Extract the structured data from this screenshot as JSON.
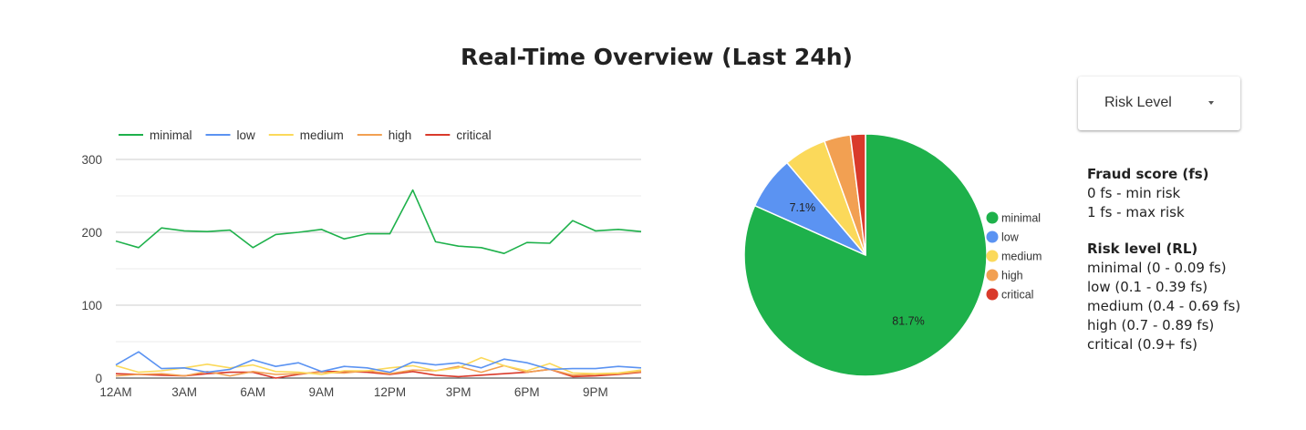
{
  "page": {
    "title": "Real-Time Overview (Last 24h)"
  },
  "dropdown": {
    "label": "Risk Level",
    "icon": "caret-down-icon"
  },
  "info": {
    "fraud_score_title": "Fraud score (fs)",
    "fraud_score_lines": [
      "0 fs - min risk",
      "1 fs - max risk"
    ],
    "risk_level_title": "Risk level (RL)",
    "risk_level_lines": [
      "minimal (0 - 0.09 fs)",
      "low (0.1 - 0.39 fs)",
      "medium (0.4 - 0.69 fs)",
      "high (0.7 - 0.89 fs)",
      "critical (0.9+ fs)"
    ]
  },
  "colors": {
    "minimal": "#1eb14b",
    "low": "#5b93f2",
    "medium": "#fbd95a",
    "high": "#f2a052",
    "critical": "#d93a2b"
  },
  "chart_data": [
    {
      "type": "line",
      "x": [
        "12AM",
        "1AM",
        "2AM",
        "3AM",
        "4AM",
        "5AM",
        "6AM",
        "7AM",
        "8AM",
        "9AM",
        "10AM",
        "11AM",
        "12PM",
        "1PM",
        "2PM",
        "3PM",
        "4PM",
        "5PM",
        "6PM",
        "7PM",
        "8PM",
        "9PM",
        "10PM",
        "11PM"
      ],
      "xtick_labels": [
        "12AM",
        "3AM",
        "6AM",
        "9AM",
        "12PM",
        "3PM",
        "6PM",
        "9PM"
      ],
      "xtick_positions": [
        0,
        3,
        6,
        9,
        12,
        15,
        18,
        21
      ],
      "yticks": [
        0,
        100,
        200,
        300
      ],
      "ylim": [
        0,
        300
      ],
      "grid": true,
      "legend_position": "top-left",
      "series": [
        {
          "name": "minimal",
          "values": [
            188,
            179,
            206,
            202,
            201,
            203,
            179,
            197,
            200,
            204,
            191,
            198,
            198,
            258,
            187,
            181,
            179,
            171,
            186,
            185,
            216,
            202,
            204,
            201
          ]
        },
        {
          "name": "low",
          "values": [
            18,
            36,
            13,
            14,
            8,
            12,
            25,
            16,
            21,
            9,
            16,
            14,
            8,
            22,
            18,
            21,
            14,
            26,
            21,
            12,
            13,
            13,
            16,
            14
          ]
        },
        {
          "name": "medium",
          "values": [
            17,
            8,
            10,
            14,
            19,
            14,
            18,
            9,
            8,
            5,
            10,
            10,
            14,
            17,
            10,
            14,
            28,
            17,
            10,
            20,
            7,
            6,
            7,
            11
          ]
        },
        {
          "name": "high",
          "values": [
            3,
            5,
            6,
            3,
            9,
            3,
            9,
            5,
            6,
            8,
            7,
            10,
            6,
            11,
            10,
            16,
            8,
            17,
            8,
            12,
            4,
            5,
            6,
            9
          ]
        },
        {
          "name": "critical",
          "values": [
            6,
            5,
            4,
            3,
            6,
            8,
            8,
            0,
            5,
            9,
            9,
            8,
            5,
            9,
            4,
            2,
            4,
            6,
            8,
            12,
            2,
            3,
            5,
            8
          ]
        }
      ]
    },
    {
      "type": "pie",
      "labels": [
        "minimal",
        "low",
        "medium",
        "high",
        "critical"
      ],
      "values": [
        81.7,
        7.1,
        5.7,
        3.5,
        2.0
      ],
      "data_labels": [
        "81.7%",
        "7.1%",
        "",
        "",
        ""
      ],
      "legend_position": "right"
    }
  ]
}
